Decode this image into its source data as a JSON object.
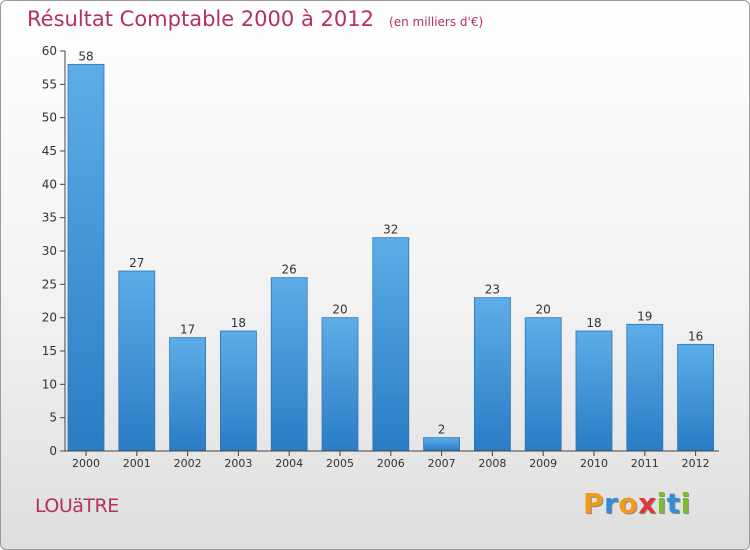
{
  "chart_data": {
    "type": "bar",
    "title": "Résultat Comptable 2000 à 2012",
    "unit_label": "(en milliers d'€)",
    "categories": [
      "2000",
      "2001",
      "2002",
      "2003",
      "2004",
      "2005",
      "2006",
      "2007",
      "2008",
      "2009",
      "2010",
      "2011",
      "2012"
    ],
    "values": [
      58,
      27,
      17,
      18,
      26,
      20,
      32,
      2,
      23,
      20,
      18,
      19,
      16
    ],
    "ylim": [
      0,
      60
    ],
    "yticks": [
      0,
      5,
      10,
      15,
      20,
      25,
      30,
      35,
      40,
      45,
      50,
      55,
      60
    ],
    "xlabel": "",
    "ylabel": "",
    "grid": false,
    "colors": {
      "bar_top": "#5dade8",
      "bar_bottom": "#2a7cc4",
      "axis": "#444444",
      "text": "#333333"
    }
  },
  "footer": {
    "commune": "LOUäTRE",
    "logo": [
      "P",
      "r",
      "o",
      "x",
      "i",
      "t",
      "i"
    ],
    "logo_colors": [
      "#f29a1a",
      "#2f8fd8",
      "#f29a1a",
      "#d93a3a",
      "#7dbb2e",
      "#2f8fd8",
      "#7dbb2e"
    ]
  }
}
